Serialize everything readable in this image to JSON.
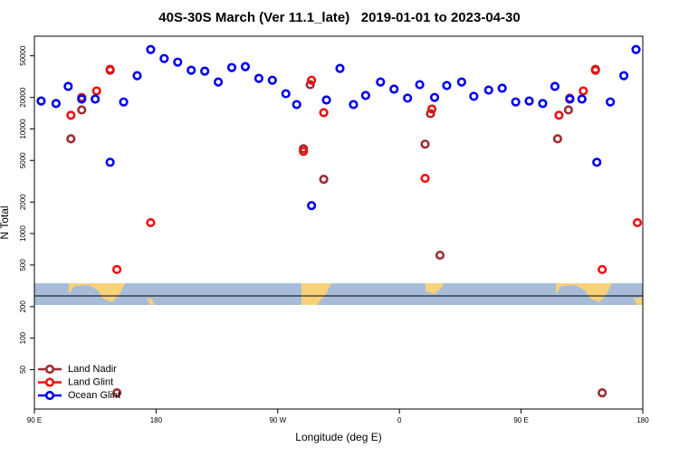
{
  "chart_data": {
    "type": "scatter",
    "title": "40S-30S March (Ver 11.1_late)   2019-01-01 to 2023-04-30",
    "x_label": "Longitude (deg E)",
    "y_label": "N Total",
    "log_y": true,
    "legend": "bottom-left",
    "xlim": [
      90,
      540
    ],
    "ylim": [
      21,
      77000
    ],
    "xticks": [
      {
        "value": 90,
        "label": "90 E"
      },
      180,
      {
        "value": 270,
        "label": "90 W"
      },
      {
        "value": 360,
        "label": "0"
      },
      {
        "value": 450,
        "label": "90 E"
      },
      {
        "value": 540,
        "label": "180"
      }
    ],
    "yticks": [
      50,
      100,
      200,
      500,
      1000,
      2000,
      5000,
      10000,
      20000,
      50000
    ],
    "series": [
      {
        "name": "Land Nadir",
        "color": "#9b2d30",
        "x": [
          117,
          125,
          146,
          151,
          289,
          294,
          304,
          379,
          383,
          390,
          477,
          485,
          505,
          510
        ],
        "values": [
          8050,
          15200,
          36400,
          30,
          6470,
          26500,
          3300,
          7150,
          14000,
          620,
          8050,
          15200,
          37100,
          30
        ]
      },
      {
        "name": "Land Glint",
        "color": "#ee1111",
        "x": [
          117,
          125,
          136,
          146,
          151,
          176,
          289,
          295,
          304,
          379,
          384,
          478,
          486,
          496,
          505,
          510,
          536
        ],
        "values": [
          13500,
          20000,
          23100,
          37100,
          453,
          1270,
          6100,
          29200,
          14300,
          3370,
          15500,
          13500,
          19700,
          23100,
          36400,
          453,
          1270
        ]
      },
      {
        "name": "Ocean Glint",
        "color": "#0000ee",
        "x": [
          95,
          106,
          115,
          125,
          135,
          146,
          156,
          166,
          176,
          186,
          196,
          206,
          216,
          226,
          236,
          246,
          256,
          266,
          276,
          284,
          295,
          306,
          316,
          326,
          335,
          346,
          356,
          366,
          375,
          386,
          395,
          406,
          415,
          426,
          436,
          446,
          456,
          466,
          475,
          486,
          495,
          506,
          516,
          526,
          535
        ],
        "values": [
          18500,
          17500,
          25500,
          19300,
          19300,
          4800,
          18100,
          32300,
          57400,
          47100,
          43500,
          36400,
          35700,
          28100,
          38600,
          39400,
          30400,
          29200,
          21700,
          17100,
          1850,
          18900,
          37900,
          17100,
          20900,
          28100,
          24000,
          19700,
          26500,
          20000,
          26000,
          28100,
          20500,
          23500,
          24500,
          18100,
          18500,
          17500,
          25500,
          19300,
          19300,
          4800,
          18100,
          32300,
          57400
        ]
      }
    ]
  }
}
